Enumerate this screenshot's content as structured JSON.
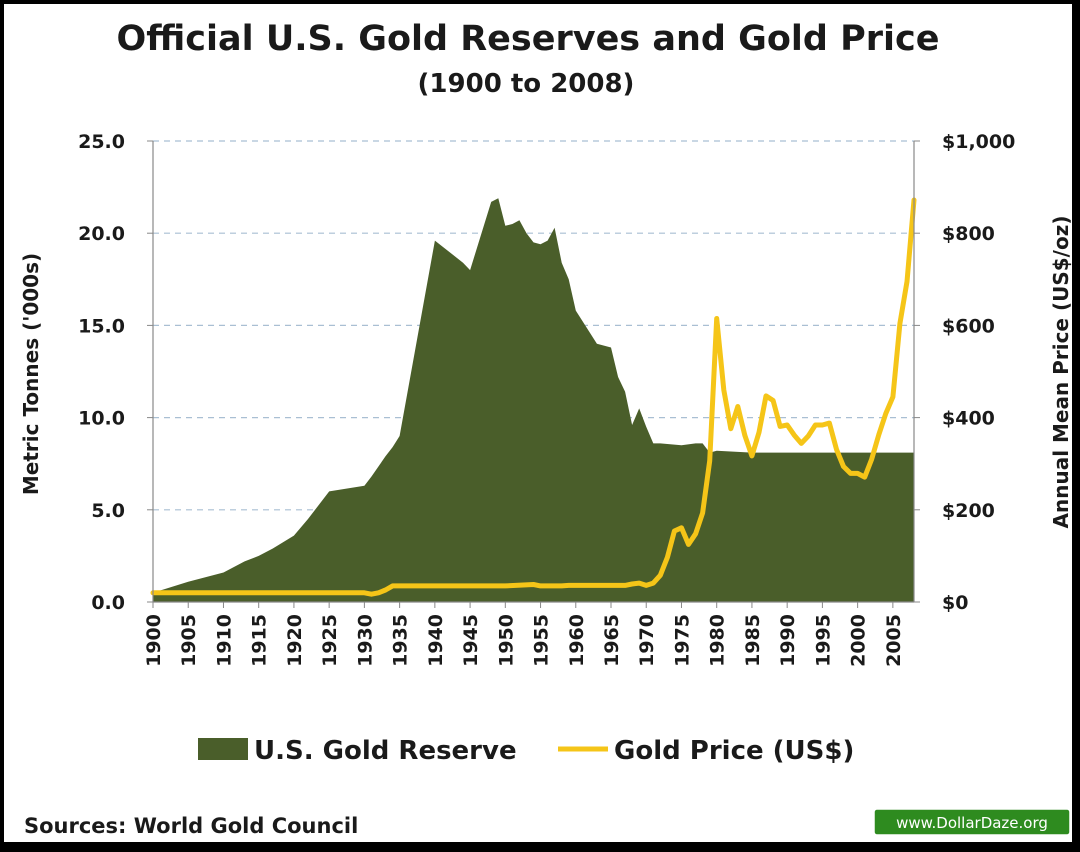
{
  "chart_data": {
    "type": "area",
    "title": "Official U.S. Gold Reserves and Gold Price",
    "subtitle": "(1900 to 2008)",
    "ylabel": "Metric Tonnes ('000s)",
    "y2label": "Annual Mean Price (US$/oz)",
    "ylim": [
      0,
      25
    ],
    "y2lim": [
      0,
      1000
    ],
    "xlim": [
      1900,
      2008
    ],
    "y_ticks": [
      "0.0",
      "5.0",
      "10.0",
      "15.0",
      "20.0",
      "25.0"
    ],
    "y2_ticks": [
      "$0",
      "$200",
      "$400",
      "$600",
      "$800",
      "$1,000"
    ],
    "x_ticks": [
      "1900",
      "1905",
      "1910",
      "1915",
      "1920",
      "1925",
      "1930",
      "1935",
      "1940",
      "1945",
      "1950",
      "1955",
      "1960",
      "1965",
      "1970",
      "1975",
      "1980",
      "1985",
      "1990",
      "1995",
      "2000",
      "2005"
    ],
    "grid": "horizontal dashed",
    "legend_position": "bottom",
    "series": [
      {
        "name": "U.S. Gold Reserve",
        "type": "area",
        "axis": "left",
        "color": "#4a5e2a",
        "x": [
          1900,
          1905,
          1910,
          1913,
          1915,
          1917,
          1920,
          1922,
          1925,
          1930,
          1931,
          1933,
          1934,
          1935,
          1940,
          1941,
          1944,
          1945,
          1948,
          1949,
          1950,
          1951,
          1952,
          1953,
          1954,
          1955,
          1956,
          1957,
          1958,
          1959,
          1960,
          1962,
          1963,
          1965,
          1966,
          1967,
          1968,
          1969,
          1970,
          1971,
          1972,
          1975,
          1977,
          1978,
          1979,
          1980,
          1985,
          1990,
          1995,
          2000,
          2005,
          2008
        ],
        "values": [
          0.5,
          1.1,
          1.6,
          2.2,
          2.5,
          2.9,
          3.6,
          4.5,
          6.0,
          6.3,
          6.8,
          7.9,
          8.4,
          9.0,
          19.6,
          19.3,
          18.4,
          18.0,
          21.7,
          21.9,
          20.4,
          20.5,
          20.7,
          20.0,
          19.5,
          19.4,
          19.6,
          20.3,
          18.4,
          17.5,
          15.8,
          14.6,
          14.0,
          13.8,
          12.2,
          11.4,
          9.6,
          10.5,
          9.5,
          8.6,
          8.6,
          8.5,
          8.6,
          8.6,
          8.1,
          8.2,
          8.1,
          8.1,
          8.1,
          8.1,
          8.1,
          8.1
        ]
      },
      {
        "name": "Gold Price (US$)",
        "type": "line",
        "axis": "right",
        "color": "#f5c518",
        "x": [
          1900,
          1930,
          1931,
          1932,
          1933,
          1934,
          1935,
          1950,
          1954,
          1955,
          1956,
          1957,
          1958,
          1959,
          1967,
          1968,
          1969,
          1970,
          1971,
          1972,
          1973,
          1974,
          1975,
          1976,
          1977,
          1978,
          1979,
          1980,
          1981,
          1982,
          1983,
          1984,
          1985,
          1986,
          1987,
          1988,
          1989,
          1990,
          1991,
          1992,
          1993,
          1994,
          1995,
          1996,
          1997,
          1998,
          1999,
          2000,
          2001,
          2002,
          2003,
          2004,
          2005,
          2006,
          2007,
          2008
        ],
        "values": [
          20,
          20,
          17,
          20,
          26,
          35,
          35,
          35,
          38,
          35,
          35,
          35,
          35,
          36,
          36,
          39,
          41,
          36,
          41,
          58,
          97,
          154,
          161,
          125,
          148,
          193,
          306,
          615,
          460,
          376,
          424,
          361,
          317,
          368,
          447,
          437,
          381,
          384,
          362,
          344,
          360,
          384,
          384,
          388,
          331,
          294,
          279,
          279,
          271,
          310,
          363,
          409,
          445,
          604,
          695,
          872
        ]
      }
    ]
  },
  "legend": {
    "reserve_label": "U.S. Gold Reserve",
    "price_label": "Gold Price (US$)"
  },
  "footer": {
    "source": "Sources: World Gold Council",
    "badge": "www.DollarDaze.org"
  }
}
